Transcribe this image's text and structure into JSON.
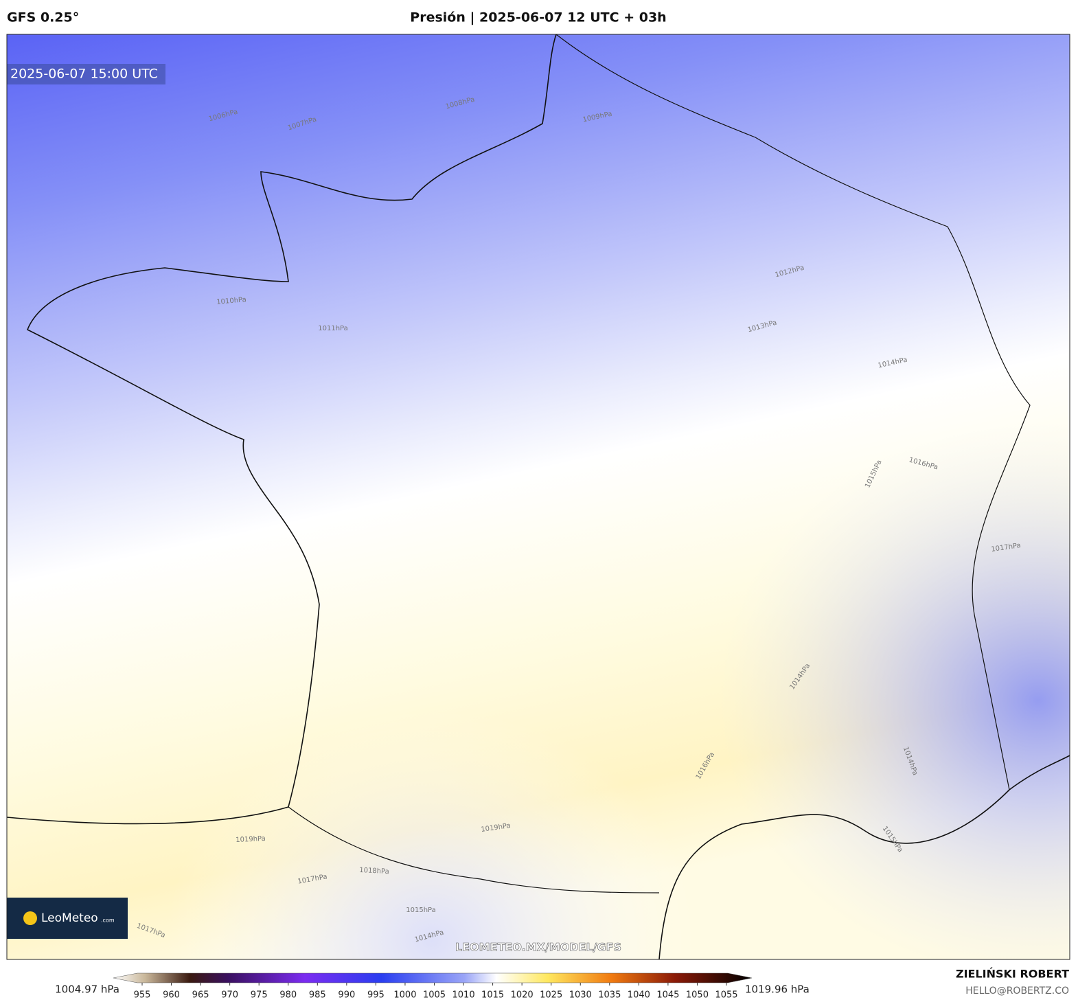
{
  "header": {
    "model": "GFS 0.25°",
    "title": "Presión | 2025-06-07 12 UTC + 03h"
  },
  "map": {
    "valid_time": "2025-06-07 15:00 UTC",
    "watermark": "LEOMETEO.MX/MODEL/GFS",
    "logo": {
      "name": "LeoMeteo",
      "suffix": ".com"
    },
    "contour_labels": [
      "1006hPa",
      "1007hPa",
      "1008hPa",
      "1009hPa",
      "1010hPa",
      "1011hPa",
      "1012hPa",
      "1013hPa",
      "1014hPa",
      "1015hPa",
      "1016hPa",
      "1017hPa",
      "1019hPa",
      "1019hPa",
      "1018hPa",
      "1017hPa",
      "1015hPa",
      "1014hPa",
      "1016hPa",
      "1017hPa",
      "1014hPa",
      "1014hPa",
      "1015hPa"
    ]
  },
  "colorbar": {
    "min_label": "1004.97 hPa",
    "max_label": "1019.96 hPa",
    "ticks": [
      955,
      960,
      965,
      970,
      975,
      980,
      985,
      990,
      995,
      1000,
      1005,
      1010,
      1015,
      1020,
      1025,
      1030,
      1035,
      1040,
      1045,
      1050,
      1055
    ]
  },
  "credits": {
    "author": "ZIELIŃSKI ROBERT",
    "contact": "HELLO@ROBERTZ.CO"
  }
}
